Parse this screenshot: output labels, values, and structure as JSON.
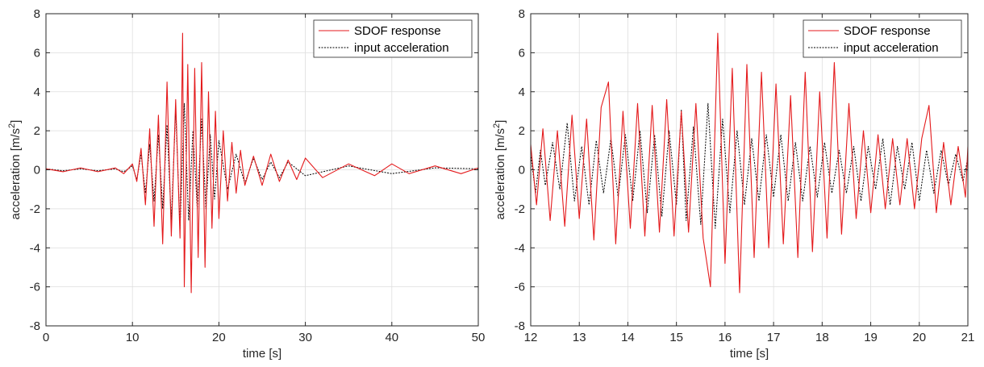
{
  "colors": {
    "response": "#e41a1c",
    "input": "#000000",
    "grid": "#dedede",
    "axis": "#262626"
  },
  "chart_data": [
    {
      "type": "line",
      "xlabel": "time [s]",
      "ylabel": "acceleration [m/s²]",
      "xlim": [
        0,
        50
      ],
      "ylim": [
        -8,
        8
      ],
      "xticks": [
        0,
        10,
        20,
        30,
        40,
        50
      ],
      "yticks": [
        -8,
        -6,
        -4,
        -2,
        0,
        2,
        4,
        6,
        8
      ],
      "grid": true,
      "legend_position": "top-right",
      "series": [
        {
          "name": "SDOF response",
          "style": "solid",
          "color": "#e41a1c",
          "x": [
            0,
            2,
            4,
            6,
            8,
            9,
            10,
            10.5,
            11,
            11.5,
            12,
            12.5,
            13,
            13.5,
            14,
            14.5,
            15,
            15.5,
            15.8,
            16,
            16.4,
            16.8,
            17.2,
            17.6,
            18,
            18.4,
            18.8,
            19.2,
            19.6,
            20,
            20.5,
            21,
            21.5,
            22,
            22.5,
            23,
            24,
            25,
            26,
            27,
            28,
            29,
            30,
            32,
            35,
            38,
            40,
            42,
            45,
            48,
            50
          ],
          "y": [
            0.05,
            -0.1,
            0.1,
            -0.1,
            0.1,
            -0.2,
            0.3,
            -0.6,
            1.1,
            -1.8,
            2.1,
            -2.9,
            2.8,
            -3.8,
            4.5,
            -3.4,
            3.6,
            -3.5,
            7.0,
            -6.0,
            5.4,
            -6.3,
            5.2,
            -4.5,
            5.5,
            -5.0,
            4.0,
            -3.0,
            3.0,
            -2.5,
            2.0,
            -1.6,
            1.4,
            -1.2,
            1.0,
            -0.8,
            0.7,
            -0.8,
            0.8,
            -0.6,
            0.5,
            -0.5,
            0.6,
            -0.4,
            0.3,
            -0.3,
            0.3,
            -0.2,
            0.2,
            -0.2,
            0.1
          ]
        },
        {
          "name": "input acceleration",
          "style": "dotted",
          "color": "#000000",
          "x": [
            0,
            2,
            4,
            6,
            8,
            9,
            10,
            10.5,
            11,
            11.5,
            12,
            12.5,
            13,
            13.5,
            14,
            14.5,
            15,
            15.5,
            16,
            16.5,
            17,
            17.5,
            18,
            18.5,
            19,
            19.5,
            20,
            21,
            22,
            23,
            24,
            25,
            26,
            27,
            28,
            30,
            35,
            40,
            45,
            50
          ],
          "y": [
            0.05,
            -0.05,
            0.05,
            -0.05,
            0.05,
            -0.1,
            0.2,
            -0.5,
            0.8,
            -1.2,
            1.3,
            -1.6,
            1.8,
            -2.0,
            2.3,
            -2.6,
            3.1,
            -3.0,
            3.4,
            -2.6,
            2.0,
            -2.0,
            2.6,
            -2.0,
            1.8,
            -1.5,
            1.5,
            -1.0,
            0.8,
            -0.7,
            0.6,
            -0.5,
            0.4,
            -0.4,
            0.4,
            -0.3,
            0.2,
            -0.2,
            0.1,
            0.05
          ]
        }
      ]
    },
    {
      "type": "line",
      "xlabel": "time [s]",
      "ylabel": "acceleration [m/s²]",
      "xlim": [
        12,
        21
      ],
      "ylim": [
        -8,
        8
      ],
      "xticks": [
        12,
        13,
        14,
        15,
        16,
        17,
        18,
        19,
        20,
        21
      ],
      "yticks": [
        -8,
        -6,
        -4,
        -2,
        0,
        2,
        4,
        6,
        8
      ],
      "grid": true,
      "legend_position": "top-right",
      "series": [
        {
          "name": "SDOF response",
          "style": "solid",
          "color": "#e41a1c",
          "x": [
            12.0,
            12.12,
            12.25,
            12.4,
            12.55,
            12.7,
            12.85,
            13.0,
            13.15,
            13.3,
            13.45,
            13.6,
            13.75,
            13.9,
            14.05,
            14.2,
            14.35,
            14.5,
            14.65,
            14.8,
            14.95,
            15.1,
            15.25,
            15.4,
            15.55,
            15.7,
            15.85,
            16.0,
            16.15,
            16.3,
            16.45,
            16.6,
            16.75,
            16.9,
            17.05,
            17.2,
            17.35,
            17.5,
            17.65,
            17.8,
            17.95,
            18.1,
            18.25,
            18.4,
            18.55,
            18.7,
            18.85,
            19.0,
            19.15,
            19.3,
            19.45,
            19.6,
            19.75,
            19.9,
            20.05,
            20.2,
            20.35,
            20.5,
            20.65,
            20.8,
            20.95,
            21.0
          ],
          "y": [
            1.3,
            -1.8,
            2.1,
            -2.6,
            2.0,
            -2.9,
            2.8,
            -2.5,
            2.6,
            -3.6,
            3.2,
            4.5,
            -3.8,
            3.0,
            -3.0,
            3.4,
            -3.4,
            3.3,
            -3.2,
            3.6,
            -3.4,
            3.0,
            -3.2,
            3.4,
            -3.5,
            -6.0,
            7.0,
            -4.8,
            5.2,
            -6.3,
            5.4,
            -4.5,
            5.0,
            -4.0,
            4.4,
            -3.8,
            3.8,
            -4.5,
            5.0,
            -4.2,
            4.0,
            -3.5,
            5.5,
            -3.3,
            3.4,
            -2.5,
            2.0,
            -2.2,
            1.8,
            -2.0,
            1.6,
            -1.8,
            1.6,
            -2.0,
            1.6,
            3.3,
            -2.2,
            1.4,
            -1.8,
            1.2,
            -1.4,
            1.2
          ]
        },
        {
          "name": "input acceleration",
          "style": "dotted",
          "color": "#000000",
          "x": [
            12.0,
            12.1,
            12.2,
            12.3,
            12.45,
            12.6,
            12.75,
            12.9,
            13.05,
            13.2,
            13.35,
            13.5,
            13.65,
            13.8,
            13.95,
            14.1,
            14.25,
            14.4,
            14.55,
            14.7,
            14.85,
            15.0,
            15.1,
            15.2,
            15.35,
            15.5,
            15.65,
            15.8,
            15.95,
            16.1,
            16.25,
            16.4,
            16.55,
            16.7,
            16.85,
            17.0,
            17.15,
            17.3,
            17.45,
            17.6,
            17.75,
            17.9,
            18.05,
            18.2,
            18.35,
            18.5,
            18.65,
            18.8,
            18.95,
            19.1,
            19.25,
            19.4,
            19.55,
            19.7,
            19.85,
            20.0,
            20.15,
            20.3,
            20.45,
            20.6,
            20.75,
            20.9,
            21.0
          ],
          "y": [
            0.8,
            -1.2,
            1.0,
            -0.8,
            1.4,
            -1.0,
            2.4,
            -1.6,
            1.2,
            -1.8,
            1.5,
            -1.2,
            1.6,
            -1.4,
            1.8,
            -1.6,
            2.0,
            -2.2,
            1.8,
            -2.4,
            2.0,
            -1.8,
            3.1,
            -2.6,
            2.2,
            -2.8,
            3.4,
            -3.0,
            2.6,
            -2.2,
            2.0,
            -1.8,
            1.6,
            -1.6,
            1.8,
            -1.4,
            1.8,
            -1.6,
            1.4,
            -1.6,
            1.2,
            -1.4,
            1.4,
            -1.2,
            1.0,
            -1.2,
            1.2,
            -1.6,
            1.2,
            -1.0,
            1.6,
            -1.8,
            1.2,
            -1.0,
            1.4,
            -1.6,
            1.0,
            -1.2,
            1.0,
            -0.8,
            0.8,
            -0.6,
            0.6
          ]
        }
      ]
    }
  ]
}
